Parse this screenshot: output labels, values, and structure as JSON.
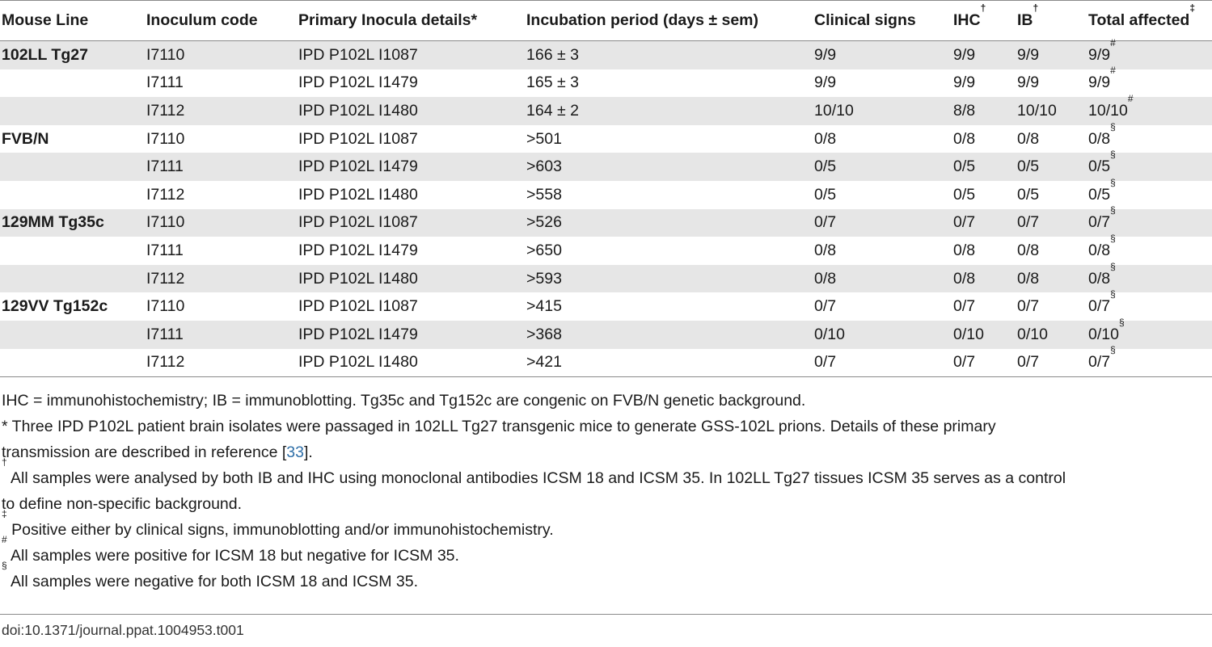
{
  "table": {
    "headers": {
      "mouse_line": "Mouse Line",
      "inoculum_code": "Inoculum code",
      "primary_inocula": "Primary Inocula details",
      "primary_inocula_mark": "*",
      "incubation": "Incubation period (days ± sem)",
      "clinical": "Clinical signs",
      "ihc": "IHC",
      "ihc_mark": "†",
      "ib": "IB",
      "ib_mark": "†",
      "total": "Total affected",
      "total_mark": "‡"
    },
    "rows": [
      {
        "line": "102LL Tg27",
        "code": "I7110",
        "details": "IPD P102L I1087",
        "incubation": "166 ± 3",
        "clinical": "9/9",
        "ihc": "9/9",
        "ib": "9/9",
        "total": "9/9",
        "mark": "#"
      },
      {
        "line": "",
        "code": "I7111",
        "details": "IPD P102L I1479",
        "incubation": "165 ± 3",
        "clinical": "9/9",
        "ihc": "9/9",
        "ib": "9/9",
        "total": "9/9",
        "mark": "#"
      },
      {
        "line": "",
        "code": "I7112",
        "details": "IPD P102L I1480",
        "incubation": "164 ± 2",
        "clinical": "10/10",
        "ihc": "8/8",
        "ib": "10/10",
        "total": "10/10",
        "mark": "#"
      },
      {
        "line": "FVB/N",
        "code": "I7110",
        "details": "IPD P102L I1087",
        "incubation": ">501",
        "clinical": "0/8",
        "ihc": "0/8",
        "ib": "0/8",
        "total": "0/8",
        "mark": "§"
      },
      {
        "line": "",
        "code": "I7111",
        "details": "IPD P102L I1479",
        "incubation": ">603",
        "clinical": "0/5",
        "ihc": "0/5",
        "ib": "0/5",
        "total": "0/5",
        "mark": "§"
      },
      {
        "line": "",
        "code": "I7112",
        "details": "IPD P102L I1480",
        "incubation": ">558",
        "clinical": "0/5",
        "ihc": "0/5",
        "ib": "0/5",
        "total": "0/5",
        "mark": "§"
      },
      {
        "line": "129MM Tg35c",
        "code": "I7110",
        "details": "IPD P102L I1087",
        "incubation": ">526",
        "clinical": "0/7",
        "ihc": "0/7",
        "ib": "0/7",
        "total": "0/7",
        "mark": "§"
      },
      {
        "line": "",
        "code": "I7111",
        "details": "IPD P102L I1479",
        "incubation": ">650",
        "clinical": "0/8",
        "ihc": "0/8",
        "ib": "0/8",
        "total": "0/8",
        "mark": "§"
      },
      {
        "line": "",
        "code": "I7112",
        "details": "IPD P102L I1480",
        "incubation": ">593",
        "clinical": "0/8",
        "ihc": "0/8",
        "ib": "0/8",
        "total": "0/8",
        "mark": "§"
      },
      {
        "line": "129VV Tg152c",
        "code": "I7110",
        "details": "IPD P102L I1087",
        "incubation": ">415",
        "clinical": "0/7",
        "ihc": "0/7",
        "ib": "0/7",
        "total": "0/7",
        "mark": "§"
      },
      {
        "line": "",
        "code": "I7111",
        "details": "IPD P102L I1479",
        "incubation": ">368",
        "clinical": "0/10",
        "ihc": "0/10",
        "ib": "0/10",
        "total": "0/10",
        "mark": "§"
      },
      {
        "line": "",
        "code": "I7112",
        "details": "IPD P102L I1480",
        "incubation": ">421",
        "clinical": "0/7",
        "ihc": "0/7",
        "ib": "0/7",
        "total": "0/7",
        "mark": "§"
      }
    ]
  },
  "notes": {
    "abbrev": "IHC = immunohistochemistry; IB = immunoblotting. Tg35c and Tg152c are congenic on FVB/N genetic background.",
    "star_pre": "* Three IPD P102L patient brain isolates were passaged in 102LL Tg27 transgenic mice to generate GSS-102L prions. Details of these primary",
    "star_line2_pre": "transmission are described in reference [",
    "star_ref": "33",
    "star_line2_post": "].",
    "dagger_mark": "†",
    "dagger_line1": " All samples were analysed by both IB and IHC using monoclonal antibodies ICSM 18 and ICSM 35. In 102LL Tg27 tissues ICSM 35 serves as a control",
    "dagger_line2": "to define non-specific background.",
    "ddagger_mark": "‡",
    "ddagger_text": " Positive either by clinical signs, immunoblotting and/or immunohistochemistry.",
    "hash_mark": "#",
    "hash_text": " All samples were positive for ICSM 18 but negative for ICSM 35.",
    "section_mark": "§",
    "section_text": " All samples were negative for both ICSM 18 and ICSM 35."
  },
  "doi": "doi:10.1371/journal.ppat.1004953.t001"
}
